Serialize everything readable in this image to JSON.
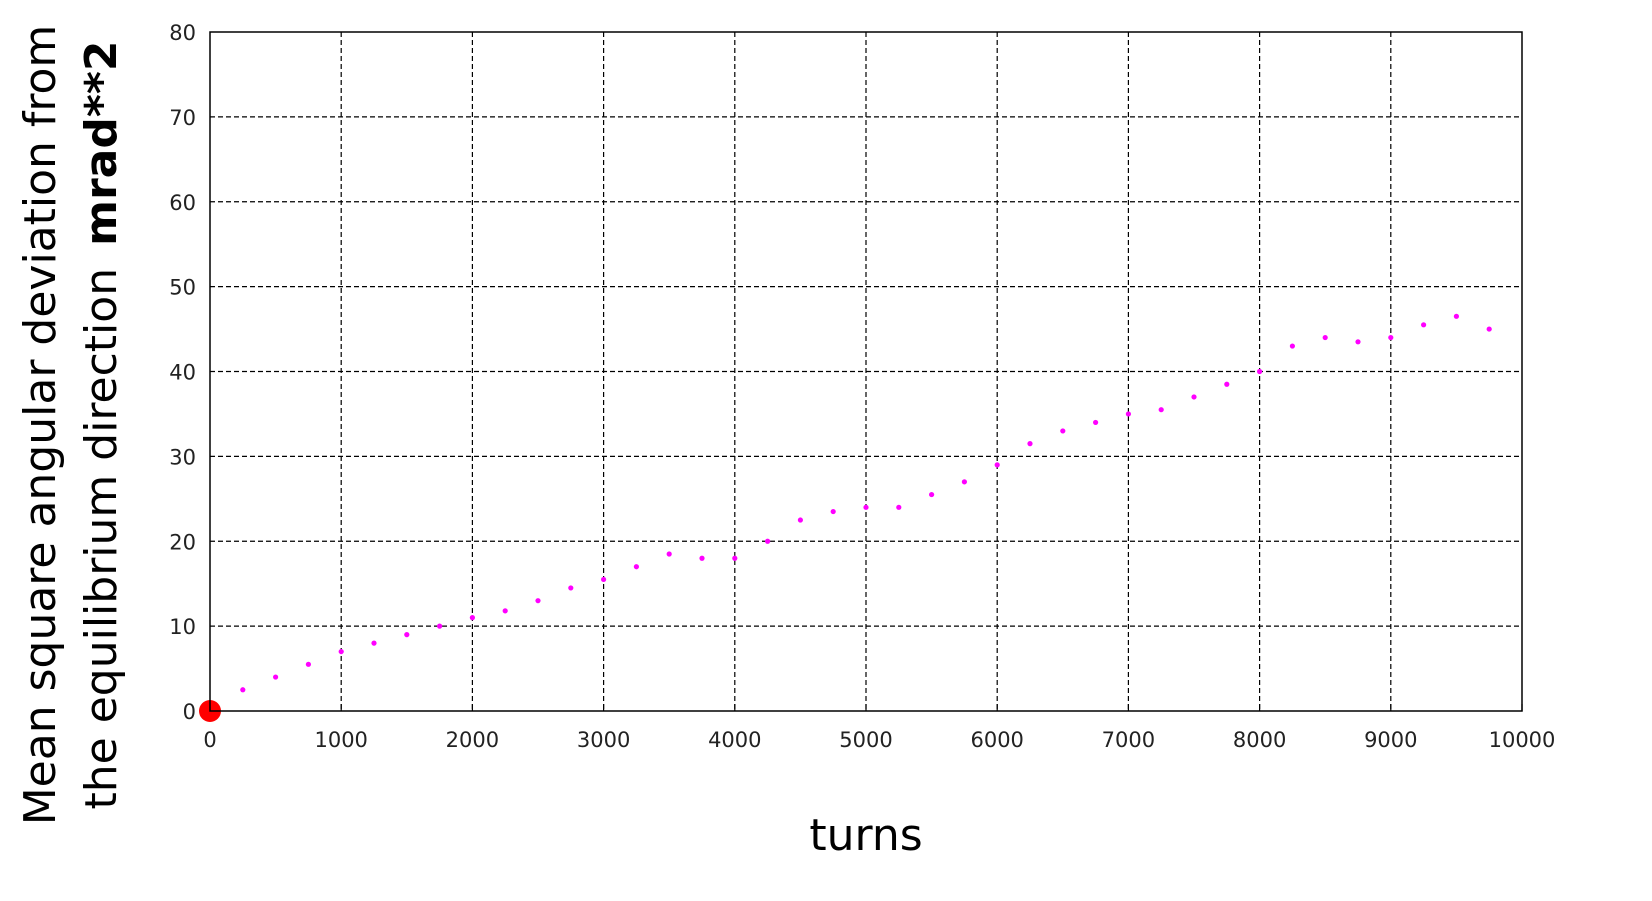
{
  "chart_data": {
    "type": "scatter",
    "title": "",
    "xlabel": "turns",
    "ylabel_line1": "Mean square angular deviation from",
    "ylabel_line2_text": "the equilibrium direction",
    "ylabel_units": "mrad**2",
    "xlim": [
      0,
      10000
    ],
    "ylim": [
      0,
      80
    ],
    "x_ticks": [
      "0",
      "1000",
      "2000",
      "3000",
      "4000",
      "5000",
      "6000",
      "7000",
      "8000",
      "9000",
      "10000"
    ],
    "y_ticks": [
      "0",
      "10",
      "20",
      "30",
      "40",
      "50",
      "60",
      "70",
      "80"
    ],
    "grid": true,
    "series": [
      {
        "color": "#ff00ff",
        "x": [
          0,
          250,
          500,
          750,
          1000,
          1250,
          1500,
          1750,
          2000,
          2250,
          2500,
          2750,
          3000,
          3250,
          3500,
          3750,
          4000,
          4250,
          4500,
          4750,
          5000,
          5250,
          5500,
          5750,
          6000,
          6250,
          6500,
          6750,
          7000,
          7250,
          7500,
          7750,
          8000,
          8250,
          8500,
          8750,
          9000,
          9250,
          9500,
          9750
        ],
        "y": [
          0.5,
          2.5,
          4,
          5.5,
          7,
          8,
          9,
          10,
          11,
          11.8,
          13,
          14.5,
          15.5,
          17,
          18.5,
          18,
          18,
          20,
          22.5,
          23.5,
          24,
          24,
          25.5,
          27,
          29,
          31.5,
          33,
          34,
          35,
          35.5,
          37,
          38.5,
          40,
          43,
          44,
          43.5,
          44,
          45.5,
          46.5,
          45
        ]
      }
    ],
    "markers": [
      {
        "x": 0,
        "y": 0,
        "color": "#ff0000"
      }
    ]
  }
}
